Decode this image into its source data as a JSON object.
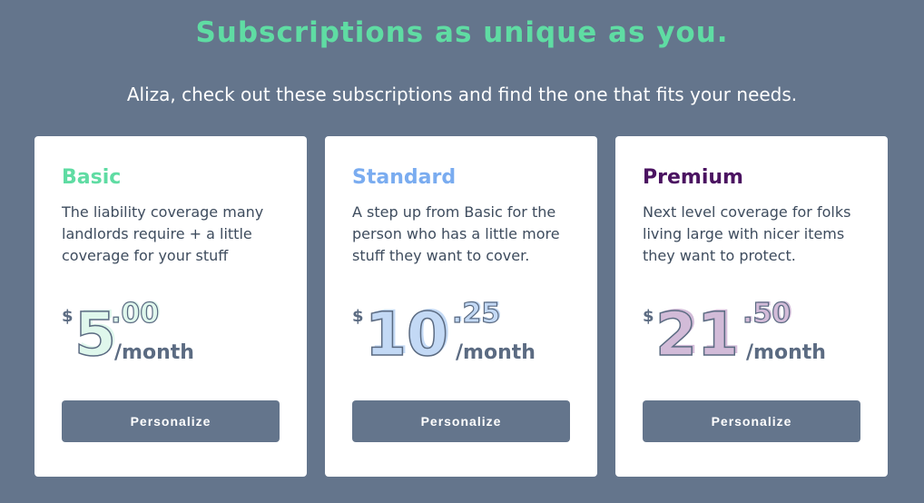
{
  "headline": "Subscriptions as unique as you.",
  "subtitle": "Aliza, check out these subscriptions and find the one that fits your needs.",
  "plans": [
    {
      "name": "Basic",
      "color": "#5fdca3",
      "fill": "#dff7ec",
      "description": "The liability coverage many landlords require + a little coverage for your stuff",
      "currency": "$",
      "dollars": "5",
      "cents": ".00",
      "period": "/month",
      "button": "Personalize"
    },
    {
      "name": "Standard",
      "color": "#7aacf0",
      "fill": "#c3d9f5",
      "description": "A step up from Basic for the person who has a little more stuff they want to cover.",
      "currency": "$",
      "dollars": "10",
      "cents": ".25",
      "period": "/month",
      "button": "Personalize"
    },
    {
      "name": "Premium",
      "color": "#4b1361",
      "fill": "#d2bbd8",
      "description": "Next level coverage for folks living large with nicer items they want to protect.",
      "currency": "$",
      "dollars": "21",
      "cents": ".50",
      "period": "/month",
      "button": "Personalize"
    }
  ]
}
